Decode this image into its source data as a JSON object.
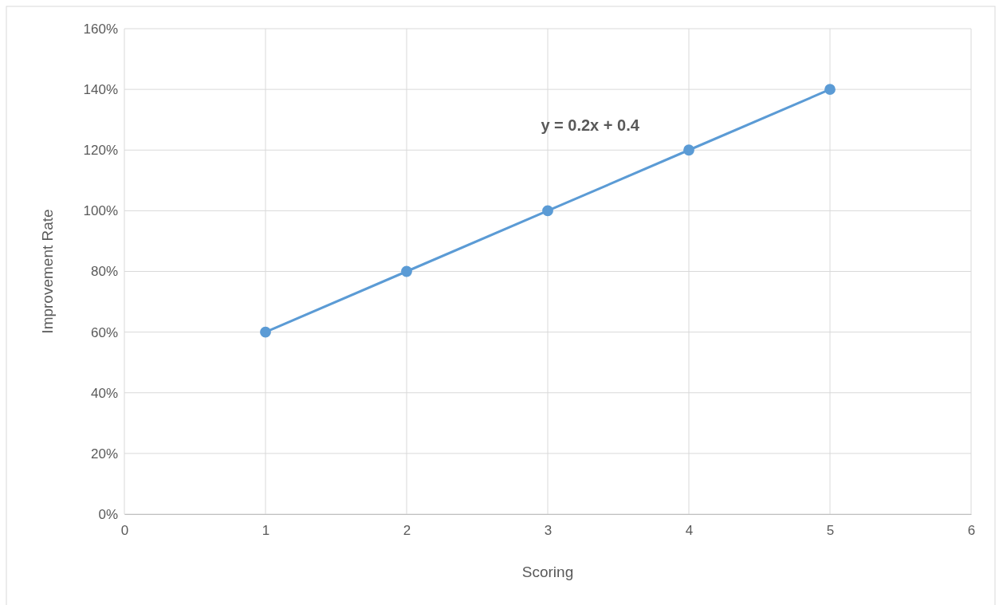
{
  "chart_data": {
    "type": "line",
    "xlabel": "Scoring",
    "ylabel": "Improvement Rate",
    "x": [
      1,
      2,
      3,
      4,
      5
    ],
    "series": [
      {
        "color": "#5b9bd5",
        "values": [
          60,
          80,
          100,
          120,
          140
        ]
      }
    ],
    "xlim": [
      0,
      6
    ],
    "xticks": [
      0,
      1,
      2,
      3,
      4,
      5,
      6
    ],
    "ylim": [
      0,
      160
    ],
    "yticks": [
      {
        "value": 0,
        "label": "0%"
      },
      {
        "value": 20,
        "label": "20%"
      },
      {
        "value": 40,
        "label": "40%"
      },
      {
        "value": 60,
        "label": "60%"
      },
      {
        "value": 80,
        "label": "80%"
      },
      {
        "value": 100,
        "label": "100%"
      },
      {
        "value": 120,
        "label": "120%"
      },
      {
        "value": 140,
        "label": "140%"
      },
      {
        "value": 160,
        "label": "160%"
      }
    ],
    "grid": true,
    "marker": "circle",
    "line_style": "solid",
    "annotations": [
      "y = 0.2x + 0.4"
    ]
  }
}
